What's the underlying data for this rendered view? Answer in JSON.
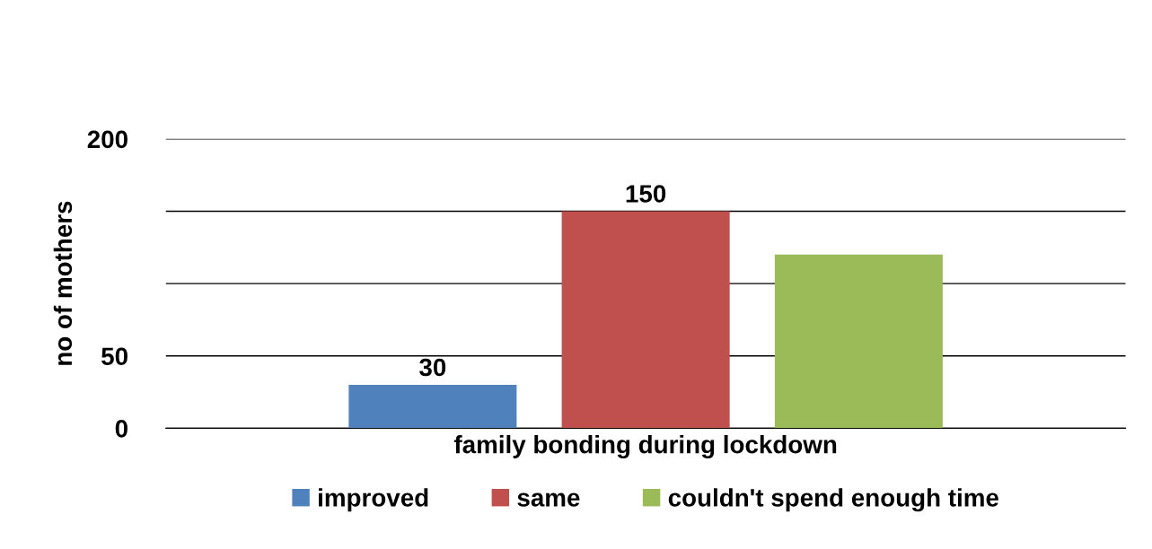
{
  "chart_data": {
    "type": "bar",
    "xlabel": "family bonding during lockdown",
    "ylabel": "no of mothers",
    "categories": [
      null
    ],
    "series": [
      {
        "name": "improved",
        "color": "#4f81bd",
        "values": [
          30
        ],
        "value_labels": [
          "30"
        ]
      },
      {
        "name": "same",
        "color": "#c0504d",
        "values": [
          150
        ],
        "value_labels": [
          "150"
        ]
      },
      {
        "name": "couldn't spend enough time",
        "color": "#9bbb59",
        "values": [
          120
        ],
        "value_labels": [
          null
        ]
      }
    ],
    "ylim": [
      0,
      200
    ],
    "yticks": [
      0,
      50,
      {
        "value": 100,
        "label": null
      },
      {
        "value": 150,
        "label": null
      },
      200
    ],
    "grid": "y",
    "legend": "bottom"
  }
}
